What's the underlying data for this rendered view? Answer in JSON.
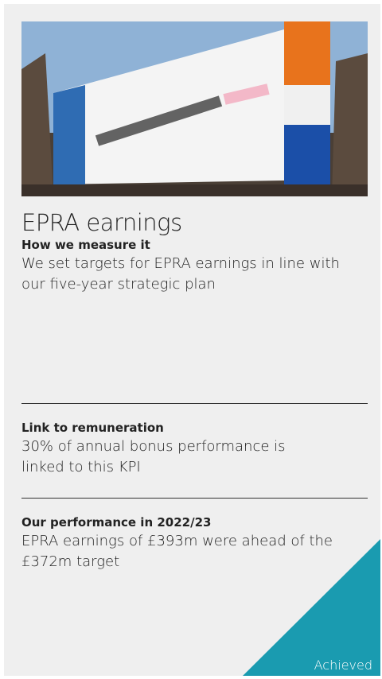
{
  "title": "EPRA earnings",
  "sections": [
    {
      "heading": "How we measure it",
      "body": "We set targets for EPRA earnings in line with our five-year strategic plan"
    },
    {
      "heading": "Link to remuneration",
      "body": "30% of annual bonus performance is linked to this KPI"
    },
    {
      "heading": "Our performance in 2022/23",
      "body": "EPRA earnings of £393m were ahead of the £372m target"
    }
  ],
  "status": "Achieved"
}
